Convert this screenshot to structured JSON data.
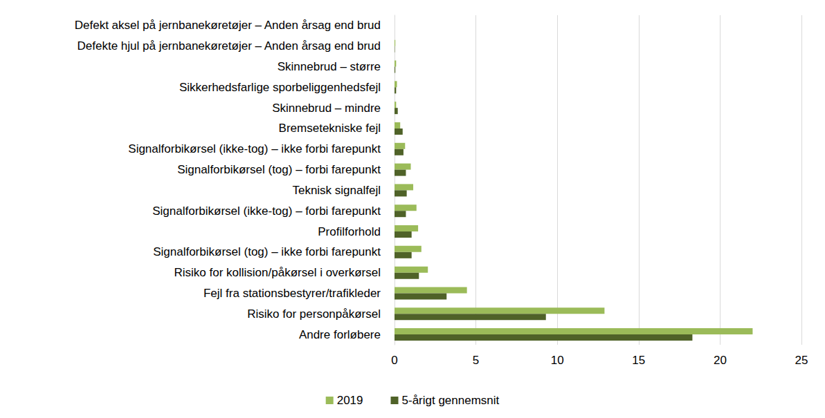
{
  "chart_data": {
    "type": "bar",
    "orientation": "horizontal",
    "categories": [
      "Defekt aksel på jernbanekøretøjer – Anden årsag end brud",
      "Defekte hjul på jernbanekøretøjer – Anden årsag end brud",
      "Skinnebrud – større",
      "Sikkerhedsfarlige sporbeliggenhedsfejl",
      "Skinnebrud – mindre",
      "Bremsetekniske fejl",
      "Signalforbikørsel (ikke-tog) – ikke forbi farepunkt",
      "Signalforbikørsel (tog) – forbi farepunkt",
      "Teknisk signalfejl",
      "Signalforbikørsel (ikke-tog) – forbi farepunkt",
      "Profilforhold",
      "Signalforbikørsel (tog) – ikke forbi farepunkt",
      "Risiko for kollision/påkørsel i overkørsel",
      "Fejl fra stationsbestyrer/trafikleder",
      "Risiko for personpåkørsel",
      "Andre forløbere"
    ],
    "series": [
      {
        "name": "2019",
        "color": "#9bbb59",
        "values": [
          0,
          0.05,
          0.1,
          0.15,
          0.1,
          0.35,
          0.65,
          1.0,
          1.15,
          1.35,
          1.45,
          1.65,
          2.05,
          4.45,
          12.9,
          22.0
        ]
      },
      {
        "name": "5-årigt gennemsnit",
        "color": "#4f6228",
        "values": [
          0,
          0.02,
          0.05,
          0.1,
          0.2,
          0.5,
          0.55,
          0.7,
          0.75,
          0.7,
          1.05,
          1.05,
          1.5,
          3.2,
          9.3,
          18.3
        ]
      }
    ],
    "xlim": [
      0,
      25
    ],
    "xticks": [
      0,
      5,
      10,
      15,
      20,
      25
    ],
    "grid": true,
    "legend": "bottom"
  }
}
